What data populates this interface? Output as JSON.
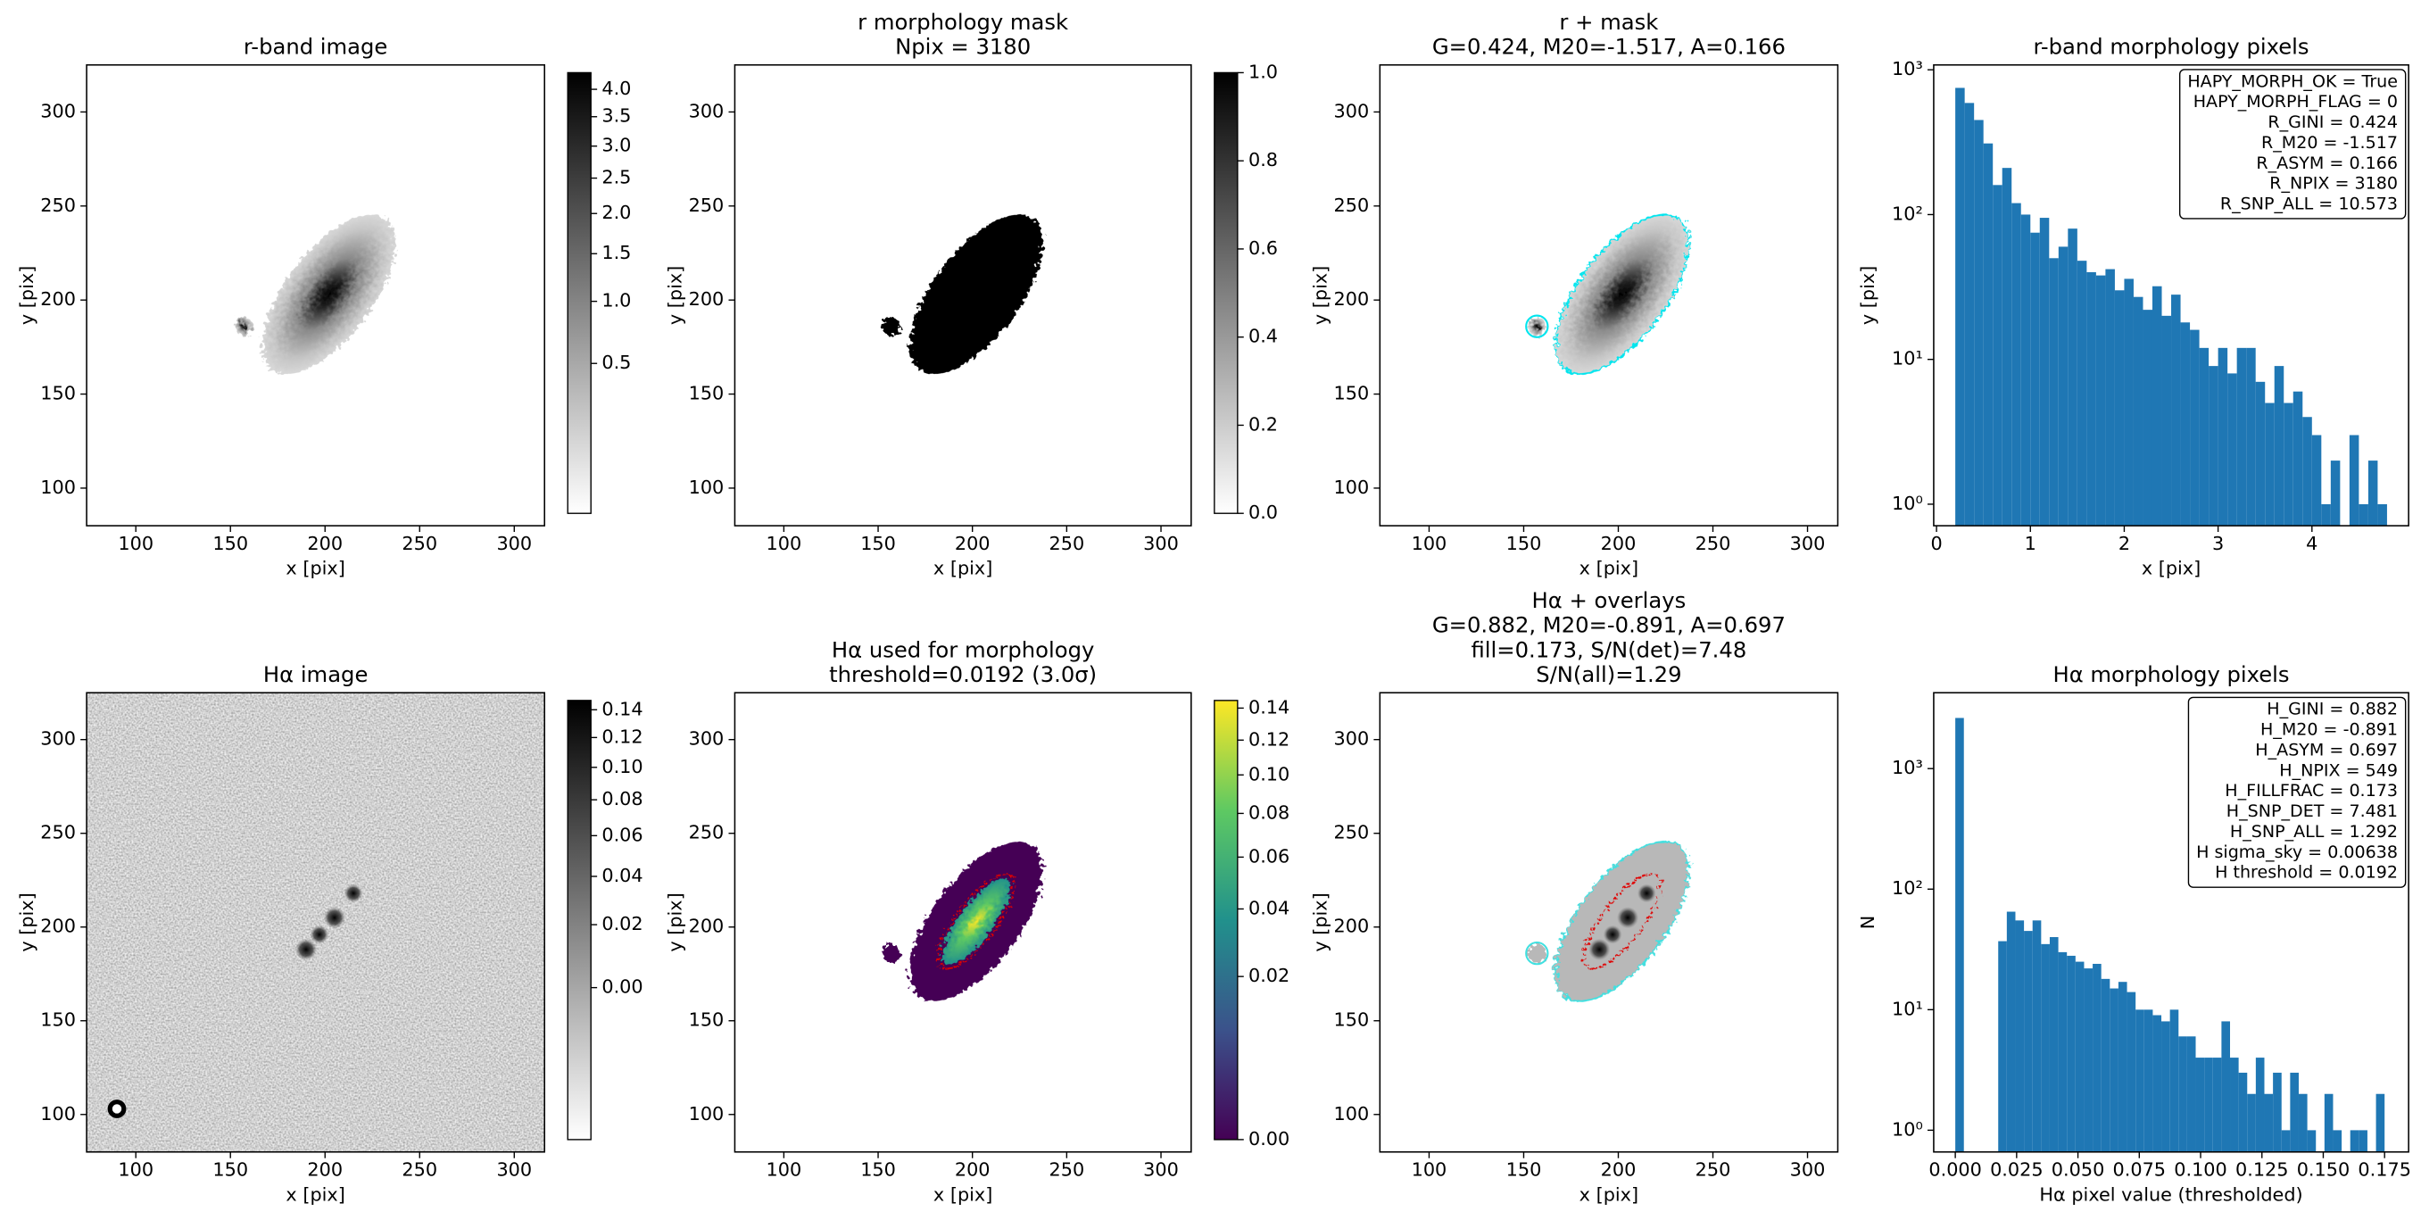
{
  "chart_data": [
    {
      "type": "image",
      "title": [
        "r-band image"
      ],
      "xlabel": "x [pix]",
      "ylabel": "y [pix]",
      "xlim": [
        74,
        316
      ],
      "ylim": [
        80,
        325
      ],
      "xticks": [
        100,
        150,
        200,
        250,
        300
      ],
      "yticks": [
        100,
        150,
        200,
        250,
        300
      ],
      "colorbar": {
        "cmap": "gray_r",
        "scale": "sqrt",
        "lim": [
          0,
          4.32
        ],
        "ticks": [
          {
            "value": 4,
            "label": "4.0"
          },
          3.5,
          {
            "value": 3,
            "label": "3.0"
          },
          2.5,
          {
            "value": 2,
            "label": "2.0"
          },
          1.5,
          {
            "value": 1,
            "label": "1.0"
          },
          0.5
        ]
      }
    },
    {
      "type": "image",
      "title": [
        "r morphology mask",
        "Npix = 3180"
      ],
      "xlabel": "x [pix]",
      "ylabel": "y [pix]",
      "xlim": [
        74,
        316
      ],
      "ylim": [
        80,
        325
      ],
      "xticks": [
        100,
        150,
        200,
        250,
        300
      ],
      "yticks": [
        100,
        150,
        200,
        250,
        300
      ],
      "colorbar": {
        "cmap": "gray_r",
        "scale": "linear",
        "lim": [
          0,
          1
        ],
        "ticks": [
          {
            "value": 0,
            "label": "0.0"
          },
          0.2,
          0.4,
          0.6,
          0.8,
          {
            "value": 1,
            "label": "1.0"
          }
        ]
      }
    },
    {
      "type": "image",
      "title": [
        "r + mask",
        "G=0.424, M20=-1.517, A=0.166"
      ],
      "xlabel": "x [pix]",
      "ylabel": "y [pix]",
      "xlim": [
        74,
        316
      ],
      "ylim": [
        80,
        325
      ],
      "xticks": [
        100,
        150,
        200,
        250,
        300
      ],
      "yticks": [
        100,
        150,
        200,
        250,
        300
      ]
    },
    {
      "type": "histogram",
      "title": [
        "r-band morphology pixels"
      ],
      "xlabel": "x [pix]",
      "ylabel": "y [pix]",
      "color": "#1f77b4",
      "yscale": "log",
      "xlim": [
        -0.03,
        5.03
      ],
      "ylim": [
        0.71,
        1080
      ],
      "xticks": [
        0,
        1,
        2,
        3,
        4
      ],
      "yticks": [
        {
          "value": 1,
          "label": "10⁰"
        },
        {
          "value": 10,
          "label": "10¹"
        },
        {
          "value": 100,
          "label": "10²"
        },
        {
          "value": 1000,
          "label": "10³"
        }
      ],
      "bins": [
        0.2,
        0.3,
        0.4,
        0.5,
        0.6,
        0.7,
        0.8,
        0.9,
        1.0,
        1.1,
        1.2,
        1.3,
        1.4,
        1.5,
        1.6,
        1.7,
        1.8,
        1.9,
        2.0,
        2.1,
        2.2,
        2.3,
        2.4,
        2.5,
        2.6,
        2.7,
        2.8,
        2.9,
        3.0,
        3.1,
        3.2,
        3.3,
        3.4,
        3.5,
        3.6,
        3.7,
        3.8,
        3.9,
        4.0,
        4.1,
        4.2,
        4.3,
        4.4,
        4.5,
        4.6,
        4.7,
        4.8
      ],
      "values": [
        750,
        590,
        450,
        310,
        160,
        210,
        120,
        100,
        75,
        95,
        50,
        60,
        80,
        48,
        40,
        38,
        42,
        30,
        36,
        27,
        22,
        32,
        20,
        28,
        18,
        16,
        12,
        9,
        12,
        8,
        12,
        12,
        7,
        5,
        9,
        5,
        6,
        4,
        3,
        1,
        2,
        0,
        3,
        1,
        2,
        1
      ],
      "annotation": [
        "HAPY_MORPH_OK = True",
        "HAPY_MORPH_FLAG = 0",
        "R_GINI = 0.424",
        "R_M20 = -1.517",
        "R_ASYM = 0.166",
        "R_NPIX = 3180",
        "R_SNP_ALL = 10.573"
      ]
    },
    {
      "type": "image",
      "title": [
        "Hα image"
      ],
      "xlabel": "x [pix]",
      "ylabel": "y [pix]",
      "xlim": [
        74,
        316
      ],
      "ylim": [
        80,
        325
      ],
      "xticks": [
        100,
        150,
        200,
        250,
        300
      ],
      "yticks": [
        100,
        150,
        200,
        250,
        300
      ],
      "colorbar": {
        "cmap": "gray_r",
        "scale": "sqrt",
        "lim": [
          -0.02,
          0.147
        ],
        "ticks": [
          0.14,
          0.12,
          {
            "value": 0.1,
            "label": "0.10"
          },
          0.08,
          0.06,
          0.04,
          0.02,
          {
            "value": 0,
            "label": "0.00"
          }
        ]
      }
    },
    {
      "type": "image",
      "title": [
        "Hα used for morphology",
        "threshold=0.0192 (3.0σ)"
      ],
      "xlabel": "x [pix]",
      "ylabel": "y [pix]",
      "xlim": [
        74,
        316
      ],
      "ylim": [
        80,
        325
      ],
      "xticks": [
        100,
        150,
        200,
        250,
        300
      ],
      "yticks": [
        100,
        150,
        200,
        250,
        300
      ],
      "colorbar": {
        "cmap": "viridis",
        "scale": "sqrt",
        "lim": [
          0,
          0.145
        ],
        "ticks": [
          0.14,
          0.12,
          {
            "value": 0.1,
            "label": "0.10"
          },
          0.08,
          0.06,
          0.04,
          0.02,
          {
            "value": 0,
            "label": "0.00"
          }
        ]
      }
    },
    {
      "type": "image",
      "title": [
        "Hα + overlays",
        "G=0.882, M20=-0.891, A=0.697",
        "fill=0.173, S/N(det)=7.48",
        "S/N(all)=1.29"
      ],
      "xlabel": "x [pix]",
      "ylabel": "y [pix]",
      "xlim": [
        74,
        316
      ],
      "ylim": [
        80,
        325
      ],
      "xticks": [
        100,
        150,
        200,
        250,
        300
      ],
      "yticks": [
        100,
        150,
        200,
        250,
        300
      ]
    },
    {
      "type": "histogram",
      "title": [
        "Hα morphology pixels"
      ],
      "xlabel": "Hα pixel value (thresholded)",
      "ylabel": "N",
      "color": "#1f77b4",
      "yscale": "log",
      "xlim": [
        -0.0088,
        0.1848
      ],
      "ylim": [
        0.66,
        4260
      ],
      "xticks": [
        {
          "value": 0,
          "label": "0.000"
        },
        {
          "value": 0.025,
          "label": "0.025"
        },
        {
          "value": 0.05,
          "label": "0.050"
        },
        {
          "value": 0.075,
          "label": "0.075"
        },
        {
          "value": 0.1,
          "label": "0.100"
        },
        {
          "value": 0.125,
          "label": "0.125"
        },
        {
          "value": 0.15,
          "label": "0.150"
        },
        {
          "value": 0.175,
          "label": "0.175"
        }
      ],
      "yticks": [
        {
          "value": 1,
          "label": "10⁰"
        },
        {
          "value": 10,
          "label": "10¹"
        },
        {
          "value": 100,
          "label": "10²"
        },
        {
          "value": 1000,
          "label": "10³"
        }
      ],
      "bins": [
        0,
        0.0035,
        0.007,
        0.0105,
        0.014,
        0.0175,
        0.021,
        0.0245,
        0.028,
        0.0315,
        0.035,
        0.0385,
        0.042,
        0.0455,
        0.049,
        0.0525,
        0.056,
        0.0595,
        0.063,
        0.0665,
        0.07,
        0.0735,
        0.077,
        0.0805,
        0.084,
        0.0875,
        0.091,
        0.0945,
        0.098,
        0.1015,
        0.105,
        0.1085,
        0.112,
        0.1155,
        0.119,
        0.1225,
        0.126,
        0.1295,
        0.133,
        0.1365,
        0.14,
        0.1435,
        0.147,
        0.1505,
        0.154,
        0.1575,
        0.161,
        0.1645,
        0.168,
        0.1715,
        0.175
      ],
      "values": [
        2631,
        0,
        0,
        0,
        0,
        37,
        65,
        55,
        45,
        55,
        35,
        40,
        30,
        28,
        25,
        22,
        24,
        18,
        15,
        17,
        14,
        10,
        10,
        9,
        8,
        10,
        6,
        6,
        4,
        4,
        4,
        8,
        4,
        3,
        2,
        4,
        2,
        3,
        1,
        3,
        2,
        1,
        0,
        2,
        1,
        0,
        1,
        1,
        0,
        2
      ],
      "annotation": [
        "H_GINI = 0.882",
        "H_M20 = -0.891",
        "H_ASYM = 0.697",
        "H_NPIX = 549",
        "H_FILLFRAC = 0.173",
        "H_SNP_DET = 7.481",
        "H_SNP_ALL = 1.292",
        "H sigma_sky = 0.00638",
        "H threshold = 0.0192"
      ]
    }
  ]
}
